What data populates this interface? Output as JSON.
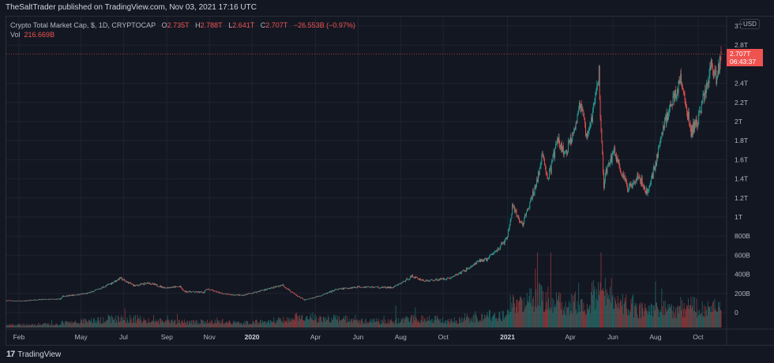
{
  "header": {
    "published": "TheSaltTrader published on TradingView.com, Nov 03, 2021 17:16 UTC"
  },
  "legend": {
    "symbol": "Crypto Total Market Cap, $, 1D, CRYPTOCAP",
    "o_label": "O",
    "o": "2.735T",
    "h_label": "H",
    "h": "2.788T",
    "l_label": "L",
    "l": "2.641T",
    "c_label": "C",
    "c": "2.707T",
    "change": "−26.553B (−0.97%)",
    "vol_label": "Vol",
    "vol": "216.669B"
  },
  "price_axis": {
    "currency": "USD",
    "last_price": "2.707T",
    "countdown": "06:43:37"
  },
  "footer": {
    "brand": "TradingView"
  },
  "colors": {
    "up": "#26a69a",
    "down": "#ef5350",
    "background": "#131722",
    "grid": "#1f2330"
  },
  "chart_data": {
    "type": "candlestick",
    "title": "Crypto Total Market Cap, $, 1D, CRYPTOCAP",
    "grid": true,
    "y_unit": "T",
    "ylim": [
      0,
      3.0
    ],
    "y_ticks": [
      {
        "v": 3.0,
        "label": "3T"
      },
      {
        "v": 2.8,
        "label": "2.8T"
      },
      {
        "v": 2.4,
        "label": "2.4T"
      },
      {
        "v": 2.2,
        "label": "2.2T"
      },
      {
        "v": 2.0,
        "label": "2T"
      },
      {
        "v": 1.8,
        "label": "1.8T"
      },
      {
        "v": 1.6,
        "label": "1.6T"
      },
      {
        "v": 1.4,
        "label": "1.4T"
      },
      {
        "v": 1.2,
        "label": "1.2T"
      },
      {
        "v": 1.0,
        "label": "1T"
      },
      {
        "v": 0.8,
        "label": "800B"
      },
      {
        "v": 0.6,
        "label": "600B"
      },
      {
        "v": 0.4,
        "label": "400B"
      },
      {
        "v": 0.2,
        "label": "200B"
      },
      {
        "v": 0,
        "label": "0"
      }
    ],
    "x_range": [
      "2019-01-14",
      "2021-11-03"
    ],
    "x_ticks": [
      {
        "d": "2019-02-01",
        "label": "Feb"
      },
      {
        "d": "2019-05-01",
        "label": "May"
      },
      {
        "d": "2019-07-01",
        "label": "Jul"
      },
      {
        "d": "2019-09-01",
        "label": "Sep"
      },
      {
        "d": "2019-11-01",
        "label": "Nov"
      },
      {
        "d": "2020-01-01",
        "label": "2020",
        "bold": true
      },
      {
        "d": "2020-04-01",
        "label": "Apr"
      },
      {
        "d": "2020-06-01",
        "label": "Jun"
      },
      {
        "d": "2020-08-01",
        "label": "Aug"
      },
      {
        "d": "2020-10-01",
        "label": "Oct"
      },
      {
        "d": "2021-01-01",
        "label": "2021",
        "bold": true
      },
      {
        "d": "2021-04-01",
        "label": "Apr"
      },
      {
        "d": "2021-06-01",
        "label": "Jun"
      },
      {
        "d": "2021-08-01",
        "label": "Aug"
      },
      {
        "d": "2021-10-01",
        "label": "Oct"
      }
    ],
    "close_path": [
      [
        "2019-01-14",
        0.125
      ],
      [
        "2019-02-08",
        0.12
      ],
      [
        "2019-02-25",
        0.135
      ],
      [
        "2019-04-01",
        0.14
      ],
      [
        "2019-04-05",
        0.17
      ],
      [
        "2019-05-10",
        0.2
      ],
      [
        "2019-05-31",
        0.26
      ],
      [
        "2019-06-26",
        0.36
      ],
      [
        "2019-07-17",
        0.28
      ],
      [
        "2019-08-06",
        0.31
      ],
      [
        "2019-08-29",
        0.26
      ],
      [
        "2019-09-20",
        0.27
      ],
      [
        "2019-09-26",
        0.22
      ],
      [
        "2019-10-24",
        0.21
      ],
      [
        "2019-10-27",
        0.25
      ],
      [
        "2019-11-25",
        0.19
      ],
      [
        "2019-12-18",
        0.18
      ],
      [
        "2020-01-14",
        0.23
      ],
      [
        "2020-02-14",
        0.29
      ],
      [
        "2020-03-12",
        0.15
      ],
      [
        "2020-03-16",
        0.13
      ],
      [
        "2020-04-30",
        0.24
      ],
      [
        "2020-06-01",
        0.27
      ],
      [
        "2020-07-20",
        0.26
      ],
      [
        "2020-08-17",
        0.38
      ],
      [
        "2020-09-05",
        0.33
      ],
      [
        "2020-10-10",
        0.36
      ],
      [
        "2020-11-24",
        0.55
      ],
      [
        "2020-12-01",
        0.55
      ],
      [
        "2020-12-31",
        0.77
      ],
      [
        "2021-01-08",
        1.1
      ],
      [
        "2021-01-22",
        0.92
      ],
      [
        "2021-02-21",
        1.65
      ],
      [
        "2021-02-28",
        1.4
      ],
      [
        "2021-03-13",
        1.8
      ],
      [
        "2021-03-25",
        1.65
      ],
      [
        "2021-04-16",
        2.2
      ],
      [
        "2021-04-25",
        1.8
      ],
      [
        "2021-05-12",
        2.5
      ],
      [
        "2021-05-19",
        1.35
      ],
      [
        "2021-05-23",
        1.5
      ],
      [
        "2021-06-03",
        1.7
      ],
      [
        "2021-06-22",
        1.3
      ],
      [
        "2021-07-07",
        1.45
      ],
      [
        "2021-07-20",
        1.25
      ],
      [
        "2021-08-14",
        2.0
      ],
      [
        "2021-09-06",
        2.45
      ],
      [
        "2021-09-21",
        1.9
      ],
      [
        "2021-09-30",
        2.0
      ],
      [
        "2021-10-20",
        2.6
      ],
      [
        "2021-10-27",
        2.45
      ],
      [
        "2021-11-03",
        2.707
      ]
    ],
    "volume_monthly_B": {
      "start": "2019-01",
      "values": [
        30,
        35,
        40,
        60,
        90,
        110,
        110,
        80,
        70,
        70,
        70,
        60,
        70,
        90,
        130,
        110,
        110,
        80,
        80,
        110,
        110,
        90,
        120,
        150,
        300,
        380,
        300,
        320,
        420,
        300,
        220,
        230,
        260,
        250,
        230
      ]
    },
    "last": {
      "open": 2.735,
      "high": 2.788,
      "low": 2.641,
      "close": 2.707,
      "volume_B": 216.669
    }
  }
}
